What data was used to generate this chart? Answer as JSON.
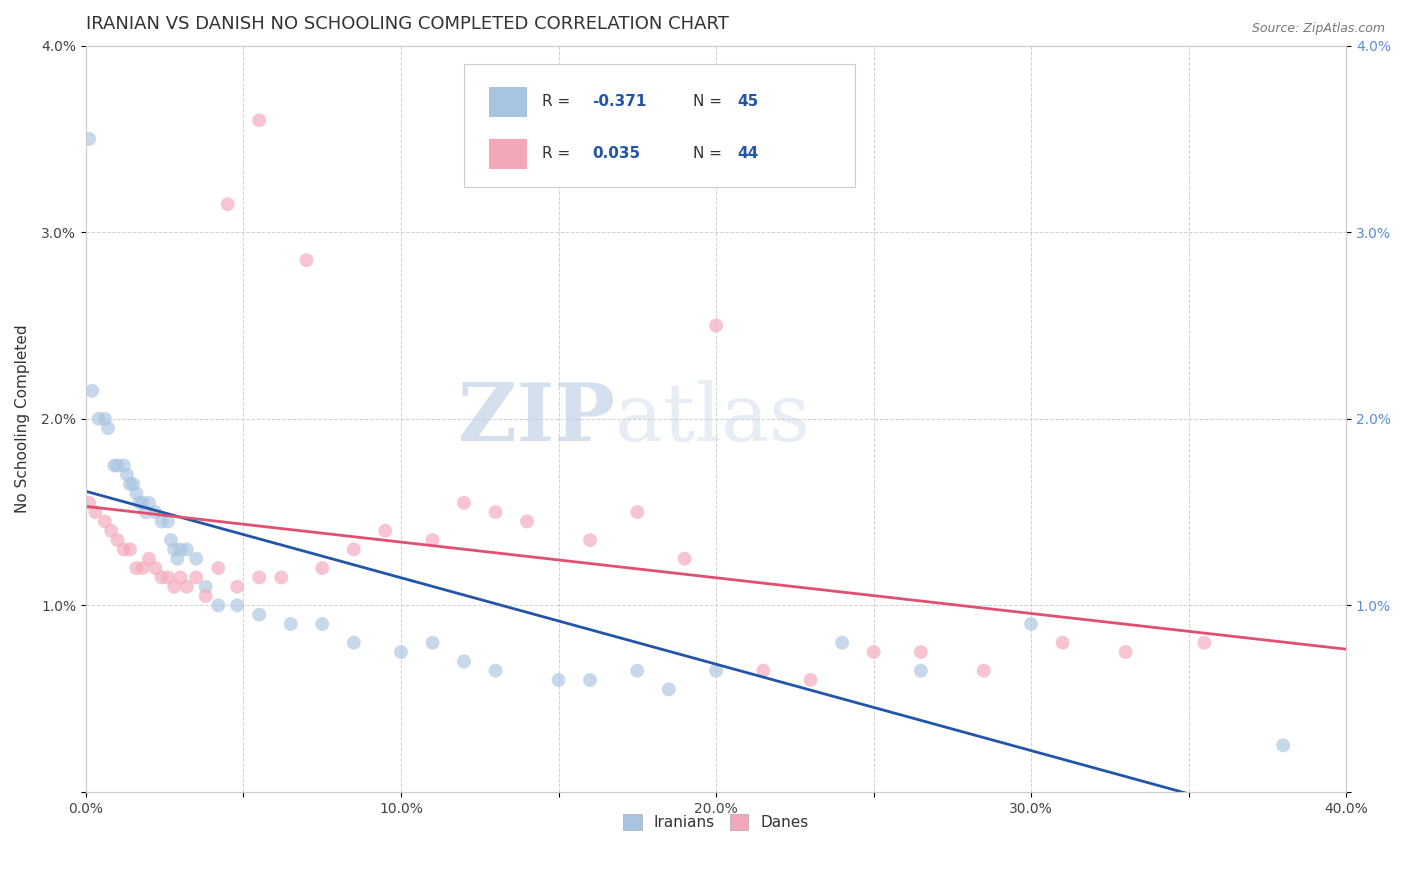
{
  "title": "IRANIAN VS DANISH NO SCHOOLING COMPLETED CORRELATION CHART",
  "source": "Source: ZipAtlas.com",
  "ylabel": "No Schooling Completed",
  "xlim": [
    0.0,
    0.4
  ],
  "ylim": [
    0.0,
    0.04
  ],
  "xtick_labels": [
    "0.0%",
    "",
    "10.0%",
    "",
    "20.0%",
    "",
    "30.0%",
    "",
    "40.0%"
  ],
  "xtick_vals": [
    0.0,
    0.05,
    0.1,
    0.15,
    0.2,
    0.25,
    0.3,
    0.35,
    0.4
  ],
  "ytick_labels": [
    "",
    "1.0%",
    "2.0%",
    "3.0%",
    "4.0%"
  ],
  "ytick_vals": [
    0.0,
    0.01,
    0.02,
    0.03,
    0.04
  ],
  "iranian_color": "#a8c4e0",
  "danish_color": "#f4a7b9",
  "iranian_line_color": "#2255aa",
  "danish_line_color": "#e05070",
  "background_color": "#ffffff",
  "watermark_zip": "ZIP",
  "watermark_atlas": "atlas",
  "legend_R_iranian": "-0.371",
  "legend_N_iranian": "45",
  "legend_R_danish": "0.035",
  "legend_N_danish": "44",
  "iranians_label": "Iranians",
  "danes_label": "Danes",
  "iranian_x": [
    0.001,
    0.002,
    0.004,
    0.006,
    0.007,
    0.009,
    0.01,
    0.012,
    0.013,
    0.014,
    0.015,
    0.016,
    0.017,
    0.018,
    0.019,
    0.02,
    0.022,
    0.024,
    0.026,
    0.027,
    0.028,
    0.029,
    0.03,
    0.032,
    0.035,
    0.038,
    0.042,
    0.048,
    0.055,
    0.065,
    0.075,
    0.085,
    0.1,
    0.11,
    0.12,
    0.13,
    0.15,
    0.16,
    0.175,
    0.185,
    0.2,
    0.24,
    0.265,
    0.3,
    0.38
  ],
  "iranian_y": [
    0.035,
    0.0215,
    0.02,
    0.02,
    0.0195,
    0.0175,
    0.0175,
    0.0175,
    0.017,
    0.0165,
    0.0165,
    0.016,
    0.0155,
    0.0155,
    0.015,
    0.0155,
    0.015,
    0.0145,
    0.0145,
    0.0135,
    0.013,
    0.0125,
    0.013,
    0.013,
    0.0125,
    0.011,
    0.01,
    0.01,
    0.0095,
    0.009,
    0.009,
    0.008,
    0.0075,
    0.008,
    0.007,
    0.0065,
    0.006,
    0.006,
    0.0065,
    0.0055,
    0.0065,
    0.008,
    0.0065,
    0.009,
    0.0025
  ],
  "danish_x": [
    0.001,
    0.003,
    0.006,
    0.008,
    0.01,
    0.012,
    0.014,
    0.016,
    0.018,
    0.02,
    0.022,
    0.024,
    0.026,
    0.028,
    0.03,
    0.032,
    0.035,
    0.038,
    0.042,
    0.048,
    0.055,
    0.062,
    0.075,
    0.085,
    0.095,
    0.11,
    0.12,
    0.13,
    0.14,
    0.16,
    0.175,
    0.19,
    0.215,
    0.23,
    0.25,
    0.265,
    0.285,
    0.31,
    0.33,
    0.355,
    0.2,
    0.045,
    0.055,
    0.07
  ],
  "danish_y": [
    0.0155,
    0.015,
    0.0145,
    0.014,
    0.0135,
    0.013,
    0.013,
    0.012,
    0.012,
    0.0125,
    0.012,
    0.0115,
    0.0115,
    0.011,
    0.0115,
    0.011,
    0.0115,
    0.0105,
    0.012,
    0.011,
    0.0115,
    0.0115,
    0.012,
    0.013,
    0.014,
    0.0135,
    0.0155,
    0.015,
    0.0145,
    0.0135,
    0.015,
    0.0125,
    0.0065,
    0.006,
    0.0075,
    0.0075,
    0.0065,
    0.008,
    0.0075,
    0.008,
    0.025,
    0.0315,
    0.036,
    0.0285
  ],
  "grid_color": "#cccccc",
  "title_fontsize": 13,
  "axis_fontsize": 11,
  "tick_fontsize": 10,
  "marker_size": 100
}
